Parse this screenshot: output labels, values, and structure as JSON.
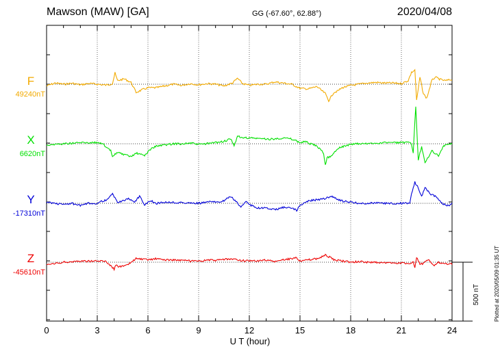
{
  "header": {
    "station": "Mawson (MAW)  [GA]",
    "coord": "GG (-67.60°,  62.88°)",
    "date": "2020/04/08"
  },
  "footer": {
    "plotted": "Plotted at 2020/05/09 01:35 UT",
    "scale": "500 nT"
  },
  "chart_data": {
    "type": "line",
    "title": "Mawson (MAW)  [GA]",
    "xlabel": "U T (hour)",
    "xlim": [
      0,
      24
    ],
    "xticks": [
      "0",
      "3",
      "6",
      "9",
      "12",
      "15",
      "18",
      "21",
      "24"
    ],
    "units": "nT",
    "scale_bar_nT": 500,
    "grid": true,
    "series": [
      {
        "name": "F",
        "baseline_label": "49240nT",
        "baseline_nT": 49240,
        "color": "#f2aa00",
        "points": [
          [
            0,
            15
          ],
          [
            0.5,
            -10
          ],
          [
            1,
            0
          ],
          [
            1.5,
            -8
          ],
          [
            2,
            5
          ],
          [
            2.5,
            -6
          ],
          [
            3,
            0
          ],
          [
            3.5,
            8
          ],
          [
            3.9,
            -5
          ],
          [
            4.05,
            -95
          ],
          [
            4.2,
            -30
          ],
          [
            4.6,
            -45
          ],
          [
            5,
            -15
          ],
          [
            5.3,
            70
          ],
          [
            5.7,
            45
          ],
          [
            6,
            30
          ],
          [
            6.5,
            30
          ],
          [
            7,
            15
          ],
          [
            7.5,
            0
          ],
          [
            8,
            10
          ],
          [
            8.5,
            -5
          ],
          [
            9,
            5
          ],
          [
            9.5,
            -5
          ],
          [
            10,
            0
          ],
          [
            10.5,
            15
          ],
          [
            11,
            -10
          ],
          [
            11.3,
            -50
          ],
          [
            11.6,
            -5
          ],
          [
            12,
            10
          ],
          [
            12.5,
            0
          ],
          [
            13,
            0
          ],
          [
            13.5,
            -20
          ],
          [
            14,
            -10
          ],
          [
            14.5,
            0
          ],
          [
            15,
            35
          ],
          [
            15.5,
            40
          ],
          [
            16,
            20
          ],
          [
            16.5,
            80
          ],
          [
            16.7,
            140
          ],
          [
            17,
            70
          ],
          [
            17.2,
            60
          ],
          [
            17.5,
            30
          ],
          [
            18,
            10
          ],
          [
            18.5,
            0
          ],
          [
            19,
            -10
          ],
          [
            19.5,
            -15
          ],
          [
            20,
            -10
          ],
          [
            20.5,
            -10
          ],
          [
            21,
            -5
          ],
          [
            21.4,
            -30
          ],
          [
            21.6,
            -100
          ],
          [
            21.8,
            -120
          ],
          [
            21.9,
            140
          ],
          [
            22.1,
            -60
          ],
          [
            22.3,
            80
          ],
          [
            22.5,
            120
          ],
          [
            22.8,
            -30
          ],
          [
            23,
            -60
          ],
          [
            23.3,
            -40
          ],
          [
            23.6,
            -30
          ],
          [
            24,
            -40
          ]
        ]
      },
      {
        "name": "X",
        "baseline_label": "6620nT",
        "baseline_nT": 6620,
        "color": "#00e000",
        "points": [
          [
            0,
            10
          ],
          [
            1,
            0
          ],
          [
            2,
            -10
          ],
          [
            3,
            -10
          ],
          [
            3.3,
            -5
          ],
          [
            3.5,
            30
          ],
          [
            3.8,
            60
          ],
          [
            3.9,
            110
          ],
          [
            4.2,
            70
          ],
          [
            4.5,
            90
          ],
          [
            5,
            110
          ],
          [
            5.3,
            80
          ],
          [
            5.8,
            100
          ],
          [
            6.2,
            40
          ],
          [
            6.5,
            20
          ],
          [
            7,
            10
          ],
          [
            7.5,
            0
          ],
          [
            8,
            0
          ],
          [
            8.5,
            -5
          ],
          [
            9,
            5
          ],
          [
            9.5,
            0
          ],
          [
            10,
            -10
          ],
          [
            10.5,
            -20
          ],
          [
            10.9,
            -40
          ],
          [
            11.1,
            20
          ],
          [
            11.3,
            -70
          ],
          [
            11.5,
            -50
          ],
          [
            12,
            -50
          ],
          [
            12.5,
            -45
          ],
          [
            13,
            -40
          ],
          [
            13.5,
            -40
          ],
          [
            14,
            -50
          ],
          [
            14.5,
            -40
          ],
          [
            15,
            -10
          ],
          [
            15.3,
            -20
          ],
          [
            15.6,
            0
          ],
          [
            16,
            20
          ],
          [
            16.4,
            80
          ],
          [
            16.5,
            180
          ],
          [
            16.6,
            120
          ],
          [
            16.9,
            100
          ],
          [
            17.2,
            40
          ],
          [
            17.6,
            20
          ],
          [
            18,
            5
          ],
          [
            18.5,
            0
          ],
          [
            19,
            0
          ],
          [
            19.5,
            -5
          ],
          [
            20,
            -10
          ],
          [
            21,
            -10
          ],
          [
            21.5,
            -10
          ],
          [
            21.6,
            10
          ],
          [
            21.7,
            80
          ],
          [
            21.85,
            -320
          ],
          [
            22,
            140
          ],
          [
            22.2,
            20
          ],
          [
            22.4,
            160
          ],
          [
            22.8,
            60
          ],
          [
            23.2,
            100
          ],
          [
            23.5,
            20
          ],
          [
            24,
            0
          ]
        ]
      },
      {
        "name": "Y",
        "baseline_label": "-17310nT",
        "baseline_nT": -17310,
        "color": "#0000d8",
        "points": [
          [
            0,
            -10
          ],
          [
            1,
            10
          ],
          [
            1.5,
            0
          ],
          [
            2,
            20
          ],
          [
            2.5,
            0
          ],
          [
            3,
            0
          ],
          [
            3.3,
            -20
          ],
          [
            3.6,
            -30
          ],
          [
            3.9,
            -80
          ],
          [
            4.2,
            -10
          ],
          [
            4.5,
            -20
          ],
          [
            4.9,
            -40
          ],
          [
            5.2,
            -10
          ],
          [
            5.5,
            -60
          ],
          [
            5.8,
            10
          ],
          [
            6.2,
            -20
          ],
          [
            6.5,
            0
          ],
          [
            7,
            -10
          ],
          [
            8,
            -5
          ],
          [
            9,
            0
          ],
          [
            9.5,
            -10
          ],
          [
            10,
            -15
          ],
          [
            10.5,
            -20
          ],
          [
            10.9,
            -60
          ],
          [
            11.3,
            0
          ],
          [
            11.5,
            30
          ],
          [
            11.8,
            -20
          ],
          [
            12,
            10
          ],
          [
            12.5,
            40
          ],
          [
            13,
            40
          ],
          [
            13.5,
            55
          ],
          [
            14,
            35
          ],
          [
            14.5,
            40
          ],
          [
            14.8,
            60
          ],
          [
            15,
            20
          ],
          [
            15.5,
            -20
          ],
          [
            16,
            -30
          ],
          [
            16.5,
            -40
          ],
          [
            16.8,
            -60
          ],
          [
            17,
            -50
          ],
          [
            17.5,
            -20
          ],
          [
            18,
            -10
          ],
          [
            18.5,
            0
          ],
          [
            19,
            0
          ],
          [
            19.5,
            -5
          ],
          [
            20,
            0
          ],
          [
            21,
            0
          ],
          [
            21.5,
            0
          ],
          [
            21.6,
            -80
          ],
          [
            21.8,
            -180
          ],
          [
            22,
            -130
          ],
          [
            22.2,
            -60
          ],
          [
            22.4,
            -140
          ],
          [
            22.7,
            -80
          ],
          [
            23,
            -60
          ],
          [
            23.4,
            0
          ],
          [
            23.8,
            20
          ],
          [
            24,
            0
          ]
        ]
      },
      {
        "name": "Z",
        "baseline_label": "-45610nT",
        "baseline_nT": -45610,
        "color": "#ee0000",
        "points": [
          [
            0,
            25
          ],
          [
            1,
            0
          ],
          [
            2,
            -10
          ],
          [
            3,
            -10
          ],
          [
            3.5,
            -10
          ],
          [
            3.8,
            30
          ],
          [
            4,
            60
          ],
          [
            4.1,
            20
          ],
          [
            4.3,
            40
          ],
          [
            4.8,
            25
          ],
          [
            5,
            0
          ],
          [
            5.3,
            -30
          ],
          [
            6,
            -20
          ],
          [
            6.5,
            -30
          ],
          [
            7,
            -20
          ],
          [
            7.5,
            -20
          ],
          [
            8,
            -15
          ],
          [
            8.5,
            -10
          ],
          [
            9,
            -5
          ],
          [
            9.5,
            -20
          ],
          [
            10,
            -15
          ],
          [
            10.5,
            -25
          ],
          [
            11,
            -25
          ],
          [
            11.5,
            -15
          ],
          [
            12,
            -10
          ],
          [
            12.5,
            -10
          ],
          [
            13,
            -20
          ],
          [
            13.5,
            -5
          ],
          [
            14,
            -20
          ],
          [
            14.5,
            -30
          ],
          [
            14.8,
            -40
          ],
          [
            15,
            -10
          ],
          [
            15.5,
            -20
          ],
          [
            16,
            -30
          ],
          [
            16.5,
            -60
          ],
          [
            16.8,
            -40
          ],
          [
            17,
            -20
          ],
          [
            17.5,
            -10
          ],
          [
            18,
            0
          ],
          [
            18.5,
            -5
          ],
          [
            19,
            0
          ],
          [
            20,
            5
          ],
          [
            21,
            5
          ],
          [
            21.5,
            15
          ],
          [
            21.7,
            0
          ],
          [
            21.8,
            55
          ],
          [
            21.9,
            -45
          ],
          [
            22.1,
            20
          ],
          [
            22.3,
            10
          ],
          [
            22.6,
            -20
          ],
          [
            22.9,
            30
          ],
          [
            23.2,
            0
          ],
          [
            23.6,
            10
          ],
          [
            24,
            15
          ]
        ]
      }
    ]
  }
}
